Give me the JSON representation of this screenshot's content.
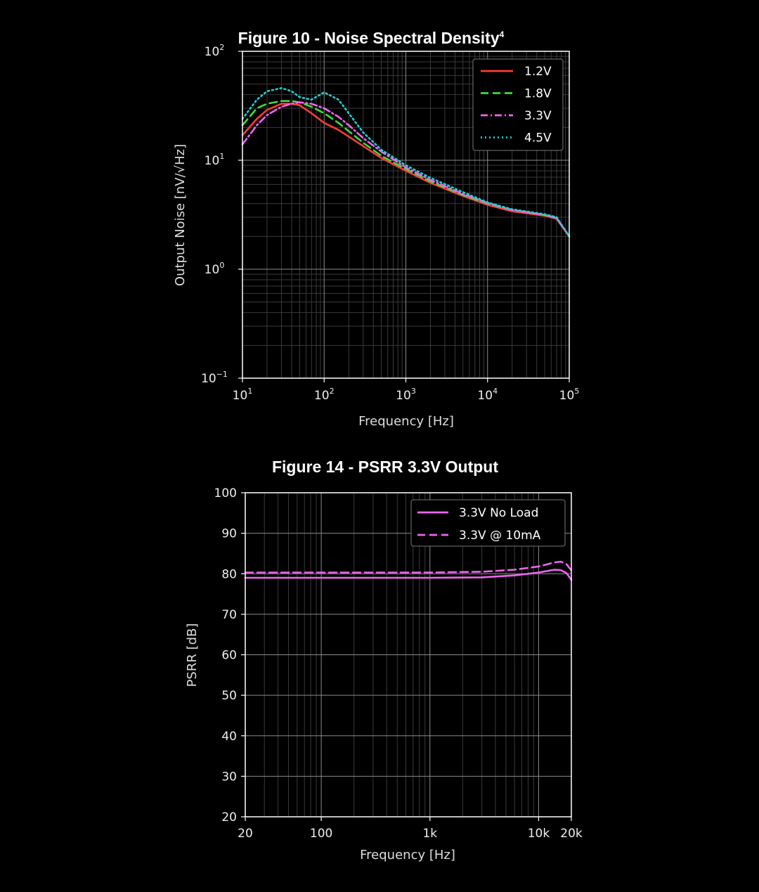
{
  "chart_data": [
    {
      "type": "line",
      "title": "Figure 10 - Noise Spectral Density",
      "title_superscript": "4",
      "xlabel": "Frequency [Hz]",
      "ylabel": "Output Noise [nV/√Hz]",
      "xscale": "log",
      "yscale": "log",
      "xlim": [
        10,
        100000
      ],
      "ylim": [
        0.1,
        100
      ],
      "x_ticks": [
        {
          "base": "10",
          "exp": "1"
        },
        {
          "base": "10",
          "exp": "2"
        },
        {
          "base": "10",
          "exp": "3"
        },
        {
          "base": "10",
          "exp": "4"
        },
        {
          "base": "10",
          "exp": "5"
        }
      ],
      "y_ticks": [
        {
          "base": "10",
          "exp": "−1"
        },
        {
          "base": "10",
          "exp": "0"
        },
        {
          "base": "10",
          "exp": "1"
        },
        {
          "base": "10",
          "exp": "2"
        }
      ],
      "grid": true,
      "legend_position": "top-right",
      "series": [
        {
          "name": "1.2V",
          "color": "#ff3b3b",
          "style": "solid",
          "x": [
            10,
            15,
            20,
            30,
            40,
            50,
            70,
            100,
            150,
            200,
            300,
            500,
            1000,
            2000,
            5000,
            10000,
            20000,
            50000,
            70000,
            100000
          ],
          "y": [
            17,
            24,
            29,
            33,
            33,
            32,
            27,
            22,
            19,
            16.5,
            13.5,
            10.5,
            8.0,
            6.2,
            4.7,
            3.9,
            3.4,
            3.1,
            2.9,
            2.0
          ]
        },
        {
          "name": "1.8V",
          "color": "#3ddc3d",
          "style": "dashed",
          "x": [
            10,
            15,
            20,
            30,
            40,
            50,
            70,
            100,
            150,
            200,
            300,
            500,
            1000,
            2000,
            5000,
            10000,
            20000,
            50000,
            70000,
            100000
          ],
          "y": [
            21,
            30,
            33,
            35,
            35,
            34,
            31,
            27,
            22,
            18.5,
            14.5,
            11.0,
            8.3,
            6.4,
            4.8,
            4.0,
            3.5,
            3.15,
            2.95,
            2.0
          ]
        },
        {
          "name": "3.3V",
          "color": "#ee66ee",
          "style": "dashdot",
          "x": [
            10,
            15,
            20,
            30,
            40,
            50,
            70,
            100,
            150,
            200,
            300,
            500,
            1000,
            2000,
            5000,
            10000,
            20000,
            50000,
            70000,
            100000
          ],
          "y": [
            14,
            21,
            26,
            31,
            33,
            34,
            33,
            30,
            25,
            21,
            16,
            12,
            8.6,
            6.6,
            4.9,
            4.05,
            3.5,
            3.15,
            2.95,
            2.0
          ]
        },
        {
          "name": "4.5V",
          "color": "#1fd0d0",
          "style": "dotted",
          "x": [
            10,
            15,
            20,
            30,
            40,
            50,
            70,
            100,
            150,
            200,
            300,
            500,
            1000,
            2000,
            5000,
            10000,
            20000,
            50000,
            70000,
            100000
          ],
          "y": [
            24,
            36,
            43,
            46,
            43,
            38,
            36,
            42,
            36,
            27,
            18,
            12.5,
            9.0,
            6.9,
            5.1,
            4.1,
            3.55,
            3.2,
            3.0,
            2.0
          ]
        }
      ]
    },
    {
      "type": "line",
      "title": "Figure 14 - PSRR 3.3V Output",
      "xlabel": "Frequency [Hz]",
      "ylabel": "PSRR [dB]",
      "xscale": "log",
      "xlim": [
        20,
        20000
      ],
      "ylim": [
        20,
        100
      ],
      "x_ticks": [
        {
          "value": 20,
          "label": "20"
        },
        {
          "value": 100,
          "label": "100"
        },
        {
          "value": 1000,
          "label": "1k"
        },
        {
          "value": 10000,
          "label": "10k"
        },
        {
          "value": 20000,
          "label": "20k"
        }
      ],
      "y_ticks": [
        "20",
        "30",
        "40",
        "50",
        "60",
        "70",
        "80",
        "90",
        "100"
      ],
      "grid": true,
      "legend_position": "top-right",
      "series": [
        {
          "name": "3.3V No Load",
          "color": "#ee66ee",
          "style": "solid",
          "x": [
            20,
            100,
            1000,
            3000,
            6000,
            10000,
            14000,
            16000,
            18000,
            20000
          ],
          "y": [
            79.0,
            79.0,
            79.0,
            79.1,
            79.6,
            80.3,
            81.0,
            80.9,
            80.2,
            78.5
          ]
        },
        {
          "name": "3.3V @ 10mA",
          "color": "#ee66ee",
          "style": "dashed",
          "x": [
            20,
            100,
            1000,
            3000,
            6000,
            10000,
            14000,
            16000,
            18000,
            20000
          ],
          "y": [
            80.3,
            80.3,
            80.3,
            80.5,
            81.0,
            81.8,
            82.8,
            83.0,
            82.4,
            80.8
          ]
        }
      ]
    }
  ]
}
